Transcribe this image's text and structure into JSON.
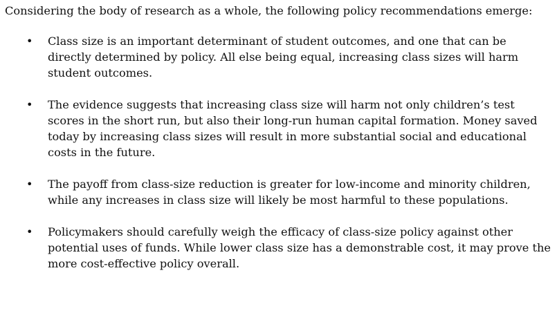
{
  "intro": "Considering the body of research as a whole, the following policy recommendations emerge:",
  "recommendations": [
    {
      "bullet": "•",
      "text": "Class size is an important determinant of student outcomes, and one that can be directly determined by policy. All else being equal, increasing class sizes will harm student outcomes."
    },
    {
      "bullet": "•",
      "text": "The evidence suggests that increasing class size will harm not only children’s test scores in the short run, but also their long-run human capital formation. Money saved today by increasing class sizes will result in more substantial social and educational costs in the future."
    },
    {
      "bullet": "•",
      "text": "The payoff from class-size reduction is greater for low-income and minority children, while any increases in class size will likely be most harmful to these populations."
    },
    {
      "bullet": "•",
      "text": "Policymakers should carefully weigh the efficacy of class-size policy against other potential uses of funds. While lower class size has a demonstrable cost, it may prove the more cost-effective policy overall."
    }
  ]
}
